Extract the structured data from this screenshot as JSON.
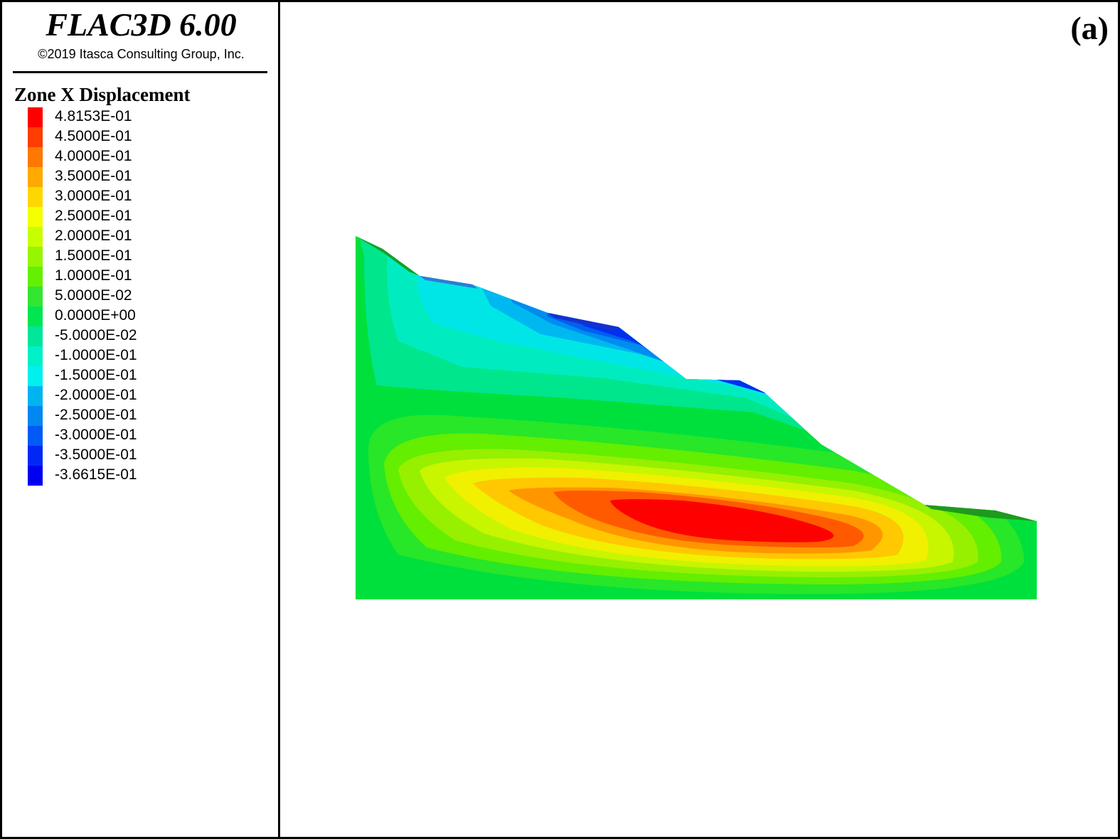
{
  "header": {
    "app_title": "FLAC3D 6.00",
    "copyright": "©2019 Itasca Consulting Group, Inc."
  },
  "legend": {
    "title": "Zone X Displacement",
    "items": [
      {
        "label": "4.8153E-01",
        "color": "#ff0000"
      },
      {
        "label": "4.5000E-01",
        "color": "#ff3d00"
      },
      {
        "label": "4.0000E-01",
        "color": "#ff7800"
      },
      {
        "label": "3.5000E-01",
        "color": "#ffaa00"
      },
      {
        "label": "3.0000E-01",
        "color": "#ffd700"
      },
      {
        "label": "2.5000E-01",
        "color": "#f5ff00"
      },
      {
        "label": "2.0000E-01",
        "color": "#c8ff00"
      },
      {
        "label": "1.5000E-01",
        "color": "#96f500"
      },
      {
        "label": "1.0000E-01",
        "color": "#64f000"
      },
      {
        "label": "5.0000E-02",
        "color": "#32e632"
      },
      {
        "label": "0.0000E+00",
        "color": "#00e650"
      },
      {
        "label": "-5.0000E-02",
        "color": "#00e69b"
      },
      {
        "label": "-1.0000E-01",
        "color": "#00f0c8"
      },
      {
        "label": "-1.5000E-01",
        "color": "#00f0f0"
      },
      {
        "label": "-2.0000E-01",
        "color": "#00b4f0"
      },
      {
        "label": "-2.5000E-01",
        "color": "#0087f0"
      },
      {
        "label": "-3.0000E-01",
        "color": "#005af5"
      },
      {
        "label": "-3.5000E-01",
        "color": "#0028f5"
      },
      {
        "label": "-3.6615E-01",
        "color": "#0000f0"
      }
    ]
  },
  "panel_label": "(a)",
  "plot": {
    "colors": {
      "base_green": "#00e03c",
      "max_red": "#ff0000",
      "min_blue": "#0000f0"
    }
  }
}
